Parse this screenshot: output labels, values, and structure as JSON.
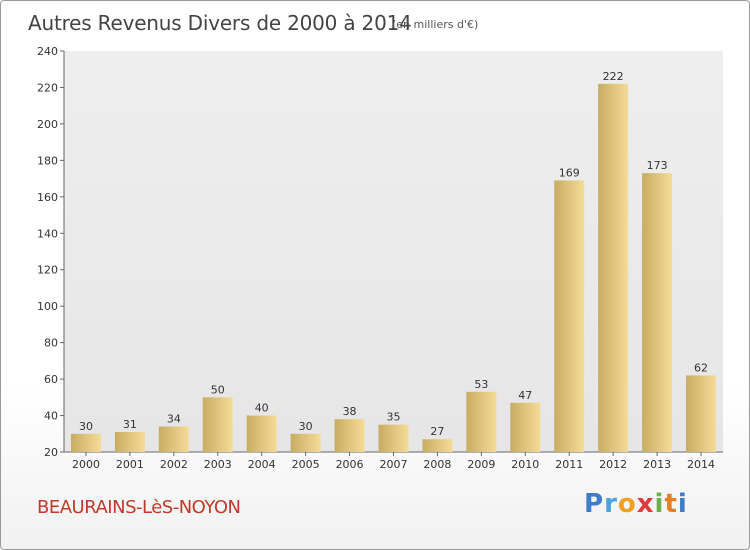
{
  "header": {
    "title": "Autres Revenus Divers de 2000 à 2014",
    "subtitle": "(en milliers d'€)"
  },
  "footer": {
    "place": "BEAURAINS-LèS-NOYON",
    "logo_letters": [
      "P",
      "r",
      "o",
      "x",
      "i",
      "t",
      "i"
    ]
  },
  "colors": {
    "bar_light": "#f5dc97",
    "bar_dark": "#c8ac63",
    "plot_bg": "#ebebeb",
    "place": "#c0392b"
  },
  "chart_data": {
    "type": "bar",
    "title": "Autres Revenus Divers de 2000 à 2014",
    "subtitle": "(en milliers d'€)",
    "categories": [
      "2000",
      "2001",
      "2002",
      "2003",
      "2004",
      "2005",
      "2006",
      "2007",
      "2008",
      "2009",
      "2010",
      "2011",
      "2012",
      "2013",
      "2014"
    ],
    "values": [
      30,
      31,
      34,
      50,
      40,
      30,
      38,
      35,
      27,
      53,
      47,
      169,
      222,
      173,
      62
    ],
    "ylim": [
      20,
      240
    ],
    "yticks": [
      20,
      40,
      60,
      80,
      100,
      120,
      140,
      160,
      180,
      200,
      220,
      240
    ],
    "xlabel": "",
    "ylabel": "",
    "grid": false,
    "legend": "none"
  }
}
